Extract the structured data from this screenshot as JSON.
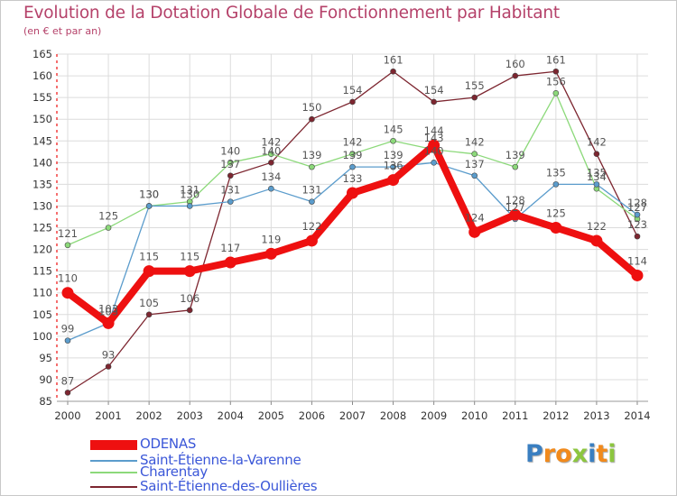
{
  "title": "Evolution de la Dotation Globale de Fonctionnement par Habitant",
  "subtitle": "(en € et par an)",
  "logo": {
    "letters": [
      "P",
      "r",
      "o",
      "x",
      "i",
      "t",
      "i"
    ],
    "colors": [
      "#3a7fc1",
      "#f18a1c",
      "#f18a1c",
      "#8cc63f",
      "#3a7fc1",
      "#f18a1c",
      "#8cc63f"
    ]
  },
  "chart_data": {
    "type": "line",
    "title": "Evolution de la Dotation Globale de Fonctionnement par Habitant",
    "subtitle": "(en € et par an)",
    "xlabel": "",
    "ylabel": "",
    "ylim": [
      85,
      165
    ],
    "yticks": [
      "85",
      "90",
      "95",
      "100",
      "105",
      "110",
      "115",
      "120",
      "125",
      "130",
      "135",
      "140",
      "145",
      "150",
      "155",
      "160",
      "165"
    ],
    "x": [
      "2000",
      "2001",
      "2002",
      "2003",
      "2004",
      "2005",
      "2006",
      "2007",
      "2008",
      "2009",
      "2010",
      "2011",
      "2012",
      "2013",
      "2014"
    ],
    "grid": true,
    "legend_position": "bottom-left",
    "series": [
      {
        "name": "Saint-Étienne-des-Oullières",
        "color": "#7d2630",
        "values": [
          87,
          93,
          105,
          106,
          137,
          140,
          150,
          154,
          161,
          154,
          155,
          160,
          161,
          142,
          123
        ],
        "labels": [
          "87",
          "93",
          "105",
          "106",
          "137",
          "140",
          "150",
          "154",
          "161",
          "154",
          "155",
          "160",
          "161",
          "142",
          "123"
        ]
      },
      {
        "name": "Charentay",
        "color": "#8cd97a",
        "values": [
          121,
          125,
          130,
          131,
          140,
          142,
          139,
          142,
          145,
          143,
          142,
          139,
          156,
          134,
          127
        ],
        "labels": [
          "121",
          "125",
          "130",
          "131",
          "140",
          "142",
          "139",
          "142",
          "145",
          "143",
          "142",
          "139",
          "156",
          "134",
          "127"
        ]
      },
      {
        "name": "Saint-Étienne-la-Varenne",
        "color": "#5b9ccc",
        "values": [
          99,
          103,
          130,
          130,
          131,
          134,
          131,
          139,
          139,
          140,
          137,
          127,
          135,
          135,
          128
        ],
        "labels": [
          "99",
          "103",
          "130",
          "130",
          "131",
          "134",
          "131",
          "139",
          "139",
          "140",
          "137",
          "127",
          "135",
          "135",
          "128"
        ]
      },
      {
        "name": "ODENAS",
        "color": "#ee1010",
        "values": [
          110,
          103,
          115,
          115,
          117,
          119,
          122,
          133,
          136,
          144,
          124,
          128,
          125,
          122,
          114
        ],
        "labels": [
          "110",
          "103",
          "115",
          "115",
          "117",
          "119",
          "122",
          "133",
          "136",
          "144",
          "124",
          "128",
          "125",
          "122",
          "114"
        ]
      }
    ]
  },
  "legend": [
    {
      "label": "ODENAS",
      "color": "#ee1010",
      "text_color": "#3b57d8"
    },
    {
      "label": "Saint-Étienne-la-Varenne",
      "color": "#5b9ccc",
      "text_color": "#3b57d8"
    },
    {
      "label": "Charentay",
      "color": "#8cd97a",
      "text_color": "#3b57d8"
    },
    {
      "label": "Saint-Étienne-des-Oullières",
      "color": "#7d2630",
      "text_color": "#3b57d8"
    }
  ]
}
